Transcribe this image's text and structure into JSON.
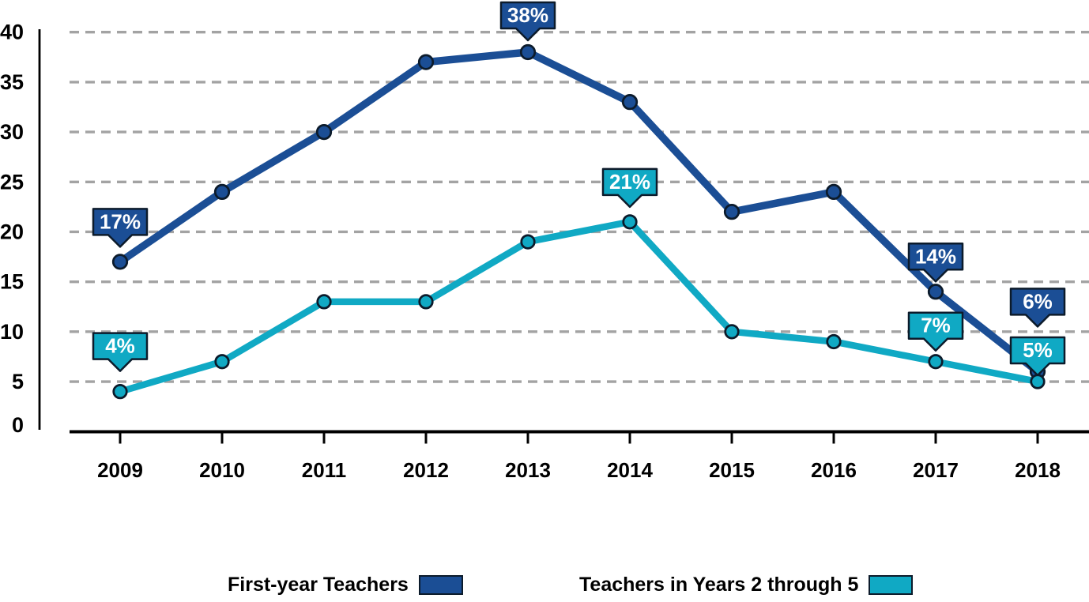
{
  "chart_data": {
    "type": "line",
    "title": "",
    "xlabel": "",
    "ylabel": "",
    "x_categories": [
      "2009",
      "2010",
      "2011",
      "2012",
      "2013",
      "2014",
      "2015",
      "2016",
      "2017",
      "2018"
    ],
    "series": [
      {
        "name": "First-year Teachers",
        "color": "#1b4e95",
        "marker": "circle",
        "values": [
          17,
          24,
          30,
          37,
          38,
          33,
          22,
          24,
          14,
          6
        ]
      },
      {
        "name": "Teachers in Years 2 through 5",
        "color": "#10a9c4",
        "marker": "circle",
        "values": [
          4,
          7,
          13,
          13,
          19,
          21,
          10,
          9,
          7,
          5
        ]
      }
    ],
    "data_labels": [
      {
        "series": 0,
        "x": "2009",
        "text": "17%",
        "offset_y": 0
      },
      {
        "series": 0,
        "x": "2013",
        "text": "38%",
        "offset_y": 4
      },
      {
        "series": 0,
        "x": "2017",
        "text": "14%",
        "offset_y": 6
      },
      {
        "series": 1,
        "x": "2009",
        "text": "4%",
        "offset_y": -7
      },
      {
        "series": 1,
        "x": "2014",
        "text": "21%",
        "offset_y": 0
      },
      {
        "series": 1,
        "x": "2017",
        "text": "7%",
        "offset_y": 5
      },
      {
        "series": 0,
        "x": "2018",
        "text": "6%",
        "offset_y": -38
      },
      {
        "series": 1,
        "x": "2018",
        "text": "5%",
        "offset_y": 11
      }
    ],
    "y_axis": {
      "min": 0,
      "max": 40,
      "step": 5,
      "ticks": [
        0,
        5,
        10,
        15,
        20,
        25,
        30,
        35,
        40
      ]
    },
    "ylim": [
      0,
      40
    ],
    "grid": {
      "orientation": "horizontal",
      "style": "dashed",
      "color": "#a3a3a3",
      "zero_line": false
    },
    "legend_position": "bottom"
  },
  "styles": {
    "axis_color": "#000000",
    "tick_label_color": "#000000",
    "marker_outline": "#0c1b2b",
    "callout_border": "#0c1b2b",
    "callout_text_color": "#ffffff"
  }
}
